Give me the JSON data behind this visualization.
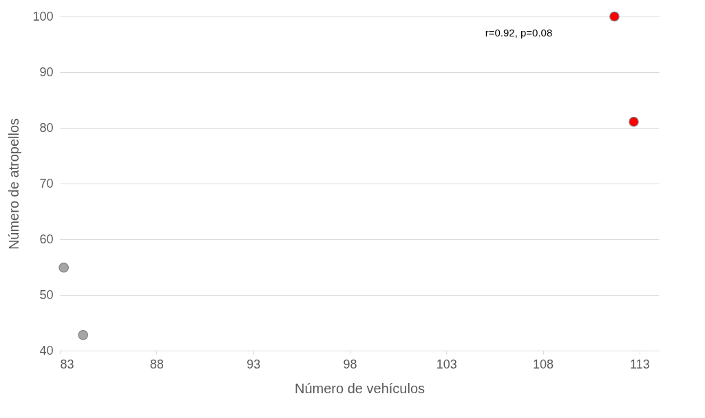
{
  "chart_data": {
    "type": "scatter",
    "xlabel": "Número de vehículos",
    "ylabel": "Número de atropellos",
    "series": [
      {
        "color": "#a5a5a5",
        "x": [
          83.2,
          84.2
        ],
        "values": [
          54.9,
          42.8
        ]
      },
      {
        "color": "#ff0000",
        "x": [
          111.7,
          112.7
        ],
        "values": [
          100,
          81.1
        ]
      }
    ],
    "xlim": [
      83,
      114
    ],
    "xticks": [
      83,
      88,
      93,
      98,
      103,
      108,
      113
    ],
    "ylim": [
      40,
      100
    ],
    "yticks": [
      40,
      50,
      60,
      70,
      80,
      90,
      100
    ],
    "grid": "y",
    "marker": "circle",
    "annotations": [
      "r=0.92, p=0.08"
    ]
  }
}
